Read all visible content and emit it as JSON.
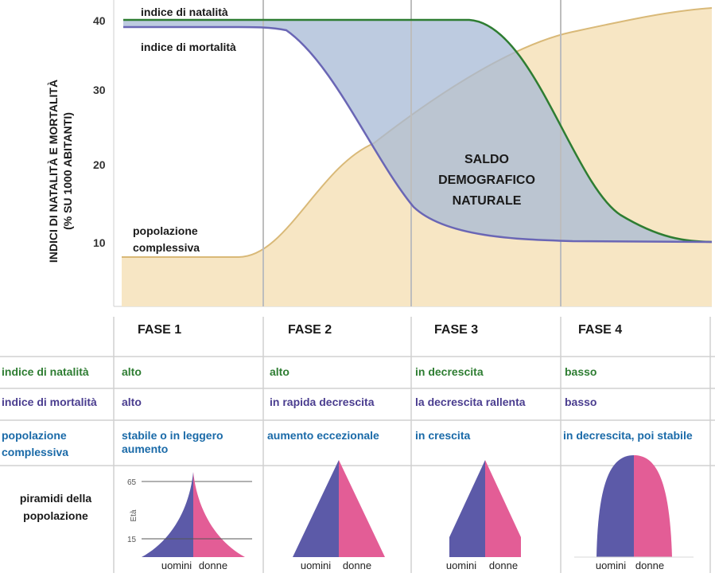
{
  "y_axis": {
    "label_line1": "INDICI DI NATALITÀ E MORTALITÀ",
    "label_line2": "(% SU 1000 ABITANTI)",
    "ticks": [
      "40",
      "30",
      "20",
      "10"
    ]
  },
  "curves": {
    "natalita_label": "indice di natalità",
    "mortalita_label": "indice di mortalità",
    "popolazione_label_line1": "popolazione",
    "popolazione_label_line2": "complessiva"
  },
  "saldo": {
    "line1": "SALDO",
    "line2": "DEMOGRAFICO",
    "line3": "NATURALE"
  },
  "phases": [
    "FASE 1",
    "FASE 2",
    "FASE 3",
    "FASE 4"
  ],
  "table": {
    "natalita": {
      "label": "indice di natalità",
      "values": [
        "alto",
        "alto",
        "in decrescita",
        "basso"
      ]
    },
    "mortalita": {
      "label": "indice di mortalità",
      "values": [
        "alto",
        "in rapida decrescita",
        "la decrescita rallenta",
        "basso"
      ]
    },
    "popolazione": {
      "label_line1": "popolazione",
      "label_line2": "complessiva",
      "values": [
        {
          "line1": "stabile o in leggero",
          "line2": "aumento"
        },
        {
          "line1": "aumento eccezionale",
          "line2": ""
        },
        {
          "line1": "in crescita",
          "line2": ""
        },
        {
          "line1": "in decrescita, poi stabile",
          "line2": ""
        }
      ]
    }
  },
  "pyramids": {
    "label_line1": "piramidi della",
    "label_line2": "popolazione",
    "age_axis_label": "Età",
    "age_65": "65",
    "age_15": "15",
    "men_label": "uomini",
    "women_label": "donne"
  },
  "colors": {
    "natalita": "#2e7d32",
    "mortalita": "#4a3d8f",
    "popolazione": "#1a6aa8",
    "population_fill": "#f7e6c4",
    "population_line": "#d9b978",
    "saldo_fill": "#a7b9d6",
    "men": "#5c5aa8",
    "women": "#e35d96"
  }
}
